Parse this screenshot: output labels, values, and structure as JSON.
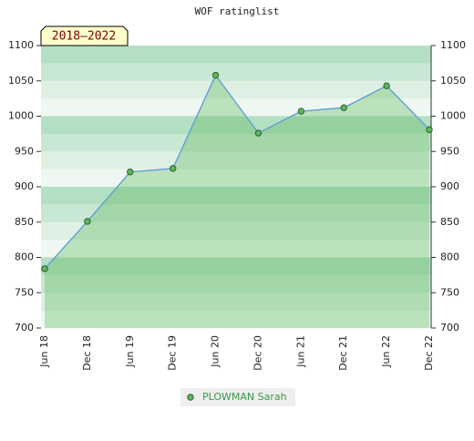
{
  "chart_data": {
    "type": "area",
    "title": "WOF ratinglist",
    "annotation": "2018–2022",
    "categories": [
      "Jun 18",
      "Dec 18",
      "Jun 19",
      "Dec 19",
      "Jun 20",
      "Dec 20",
      "Jun 21",
      "Dec 21",
      "Jun 22",
      "Dec 22"
    ],
    "series": [
      {
        "name": "PLOWMAN Sarah",
        "color": "#5cb85c",
        "line_color": "#5b9bd5",
        "values": [
          784,
          851,
          921,
          926,
          1058,
          976,
          1007,
          1012,
          1043,
          981
        ]
      }
    ],
    "ylim": [
      700,
      1100
    ],
    "yticks": [
      700,
      750,
      800,
      850,
      900,
      950,
      1000,
      1050,
      1100
    ],
    "y2lim": [
      700,
      1100
    ],
    "y2ticks": [
      700,
      750,
      800,
      850,
      900,
      950,
      1000,
      1050,
      1100
    ],
    "grid": true
  }
}
